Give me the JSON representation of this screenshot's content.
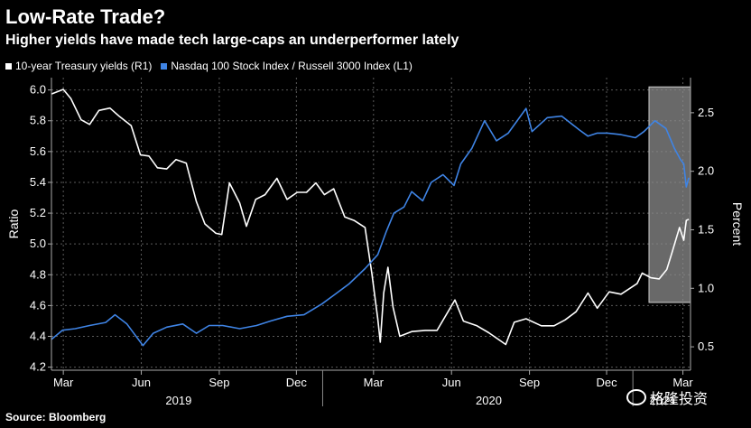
{
  "chart_data": {
    "type": "line",
    "title": "Low-Rate Trade?",
    "subtitle": "Higher yields have made tech large-caps an underperformer lately",
    "source": "Source: Bloomberg",
    "watermark": "格隆投资",
    "y_left_label": "Ratio",
    "y_right_label": "Percent",
    "y_left_ticks": [
      "4.2",
      "4.4",
      "4.6",
      "4.8",
      "5.0",
      "5.2",
      "5.4",
      "5.6",
      "5.8",
      "6.0"
    ],
    "y_right_ticks": [
      "0.5",
      "1.0",
      "1.5",
      "2.0",
      "2.5"
    ],
    "y_left_range": [
      4.18,
      6.08
    ],
    "y_right_range": [
      0.3,
      2.8
    ],
    "x_range": [
      "2019-02-15",
      "2021-03-10"
    ],
    "x_ticks": [
      {
        "label": "Mar",
        "date": "2019-03-01"
      },
      {
        "label": "Jun",
        "date": "2019-06-01"
      },
      {
        "label": "Sep",
        "date": "2019-09-01"
      },
      {
        "label": "Dec",
        "date": "2019-12-01"
      },
      {
        "label": "Mar",
        "date": "2020-03-01"
      },
      {
        "label": "Jun",
        "date": "2020-06-01"
      },
      {
        "label": "Sep",
        "date": "2020-09-01"
      },
      {
        "label": "Dec",
        "date": "2020-12-01"
      },
      {
        "label": "Mar",
        "date": "2021-03-01"
      }
    ],
    "years": [
      {
        "label": "2019",
        "date": "2019-07-15"
      },
      {
        "label": "2020",
        "date": "2020-07-15"
      },
      {
        "label": "2021",
        "date": "2021-02-05"
      }
    ],
    "highlight": {
      "start": "2021-01-20",
      "end": "2021-03-10",
      "y_left": [
        4.62,
        6.02
      ]
    },
    "series": [
      {
        "name": "10-year Treasury yields (R1)",
        "axis": "right",
        "color": "#ffffff",
        "points": [
          [
            "2019-02-15",
            2.66
          ],
          [
            "2019-03-01",
            2.7
          ],
          [
            "2019-03-10",
            2.62
          ],
          [
            "2019-03-22",
            2.44
          ],
          [
            "2019-04-01",
            2.4
          ],
          [
            "2019-04-12",
            2.52
          ],
          [
            "2019-04-25",
            2.54
          ],
          [
            "2019-05-06",
            2.47
          ],
          [
            "2019-05-20",
            2.39
          ],
          [
            "2019-05-31",
            2.14
          ],
          [
            "2019-06-10",
            2.13
          ],
          [
            "2019-06-20",
            2.03
          ],
          [
            "2019-07-01",
            2.02
          ],
          [
            "2019-07-12",
            2.1
          ],
          [
            "2019-07-24",
            2.07
          ],
          [
            "2019-08-05",
            1.74
          ],
          [
            "2019-08-15",
            1.55
          ],
          [
            "2019-08-28",
            1.47
          ],
          [
            "2019-09-04",
            1.46
          ],
          [
            "2019-09-13",
            1.9
          ],
          [
            "2019-09-25",
            1.73
          ],
          [
            "2019-10-03",
            1.53
          ],
          [
            "2019-10-14",
            1.76
          ],
          [
            "2019-10-25",
            1.8
          ],
          [
            "2019-11-08",
            1.94
          ],
          [
            "2019-11-20",
            1.76
          ],
          [
            "2019-12-02",
            1.82
          ],
          [
            "2019-12-13",
            1.82
          ],
          [
            "2019-12-24",
            1.9
          ],
          [
            "2020-01-03",
            1.8
          ],
          [
            "2020-01-14",
            1.85
          ],
          [
            "2020-01-27",
            1.61
          ],
          [
            "2020-02-07",
            1.58
          ],
          [
            "2020-02-20",
            1.52
          ],
          [
            "2020-02-28",
            1.13
          ],
          [
            "2020-03-06",
            0.74
          ],
          [
            "2020-03-09",
            0.54
          ],
          [
            "2020-03-13",
            0.96
          ],
          [
            "2020-03-18",
            1.18
          ],
          [
            "2020-03-24",
            0.84
          ],
          [
            "2020-04-01",
            0.59
          ],
          [
            "2020-04-15",
            0.63
          ],
          [
            "2020-05-01",
            0.64
          ],
          [
            "2020-05-15",
            0.64
          ],
          [
            "2020-06-05",
            0.9
          ],
          [
            "2020-06-15",
            0.72
          ],
          [
            "2020-07-01",
            0.68
          ],
          [
            "2020-07-15",
            0.62
          ],
          [
            "2020-08-04",
            0.52
          ],
          [
            "2020-08-14",
            0.71
          ],
          [
            "2020-08-28",
            0.74
          ],
          [
            "2020-09-15",
            0.68
          ],
          [
            "2020-09-30",
            0.68
          ],
          [
            "2020-10-13",
            0.73
          ],
          [
            "2020-10-26",
            0.8
          ],
          [
            "2020-11-09",
            0.96
          ],
          [
            "2020-11-20",
            0.83
          ],
          [
            "2020-12-04",
            0.97
          ],
          [
            "2020-12-18",
            0.95
          ],
          [
            "2021-01-06",
            1.04
          ],
          [
            "2021-01-12",
            1.13
          ],
          [
            "2021-01-22",
            1.09
          ],
          [
            "2021-02-01",
            1.08
          ],
          [
            "2021-02-10",
            1.16
          ],
          [
            "2021-02-16",
            1.3
          ],
          [
            "2021-02-25",
            1.52
          ],
          [
            "2021-03-02",
            1.41
          ],
          [
            "2021-03-05",
            1.58
          ],
          [
            "2021-03-08",
            1.59
          ]
        ]
      },
      {
        "name": "Nasdaq 100 Stock Index / Russell 3000 Index (L1)",
        "axis": "left",
        "color": "#3f84e5",
        "points": [
          [
            "2019-02-15",
            4.38
          ],
          [
            "2019-02-28",
            4.44
          ],
          [
            "2019-03-15",
            4.45
          ],
          [
            "2019-04-01",
            4.47
          ],
          [
            "2019-04-20",
            4.49
          ],
          [
            "2019-05-01",
            4.54
          ],
          [
            "2019-05-15",
            4.48
          ],
          [
            "2019-06-03",
            4.34
          ],
          [
            "2019-06-15",
            4.42
          ],
          [
            "2019-07-01",
            4.46
          ],
          [
            "2019-07-20",
            4.48
          ],
          [
            "2019-08-05",
            4.42
          ],
          [
            "2019-08-20",
            4.47
          ],
          [
            "2019-09-05",
            4.47
          ],
          [
            "2019-09-25",
            4.45
          ],
          [
            "2019-10-15",
            4.47
          ],
          [
            "2019-11-01",
            4.5
          ],
          [
            "2019-11-20",
            4.53
          ],
          [
            "2019-12-10",
            4.54
          ],
          [
            "2019-12-31",
            4.61
          ],
          [
            "2020-01-15",
            4.67
          ],
          [
            "2020-02-01",
            4.74
          ],
          [
            "2020-02-20",
            4.84
          ],
          [
            "2020-03-06",
            4.93
          ],
          [
            "2020-03-16",
            5.08
          ],
          [
            "2020-03-25",
            5.2
          ],
          [
            "2020-04-06",
            5.24
          ],
          [
            "2020-04-15",
            5.34
          ],
          [
            "2020-04-28",
            5.28
          ],
          [
            "2020-05-08",
            5.4
          ],
          [
            "2020-05-22",
            5.45
          ],
          [
            "2020-06-04",
            5.38
          ],
          [
            "2020-06-12",
            5.52
          ],
          [
            "2020-06-25",
            5.62
          ],
          [
            "2020-07-10",
            5.8
          ],
          [
            "2020-07-24",
            5.67
          ],
          [
            "2020-08-07",
            5.72
          ],
          [
            "2020-08-28",
            5.88
          ],
          [
            "2020-09-04",
            5.73
          ],
          [
            "2020-09-22",
            5.82
          ],
          [
            "2020-10-09",
            5.83
          ],
          [
            "2020-10-30",
            5.74
          ],
          [
            "2020-11-09",
            5.7
          ],
          [
            "2020-11-20",
            5.72
          ],
          [
            "2020-12-02",
            5.72
          ],
          [
            "2020-12-18",
            5.71
          ],
          [
            "2021-01-04",
            5.69
          ],
          [
            "2021-01-14",
            5.73
          ],
          [
            "2021-01-27",
            5.8
          ],
          [
            "2021-02-09",
            5.75
          ],
          [
            "2021-02-19",
            5.62
          ],
          [
            "2021-02-26",
            5.55
          ],
          [
            "2021-03-02",
            5.52
          ],
          [
            "2021-03-05",
            5.37
          ],
          [
            "2021-03-08",
            5.43
          ]
        ]
      }
    ]
  }
}
